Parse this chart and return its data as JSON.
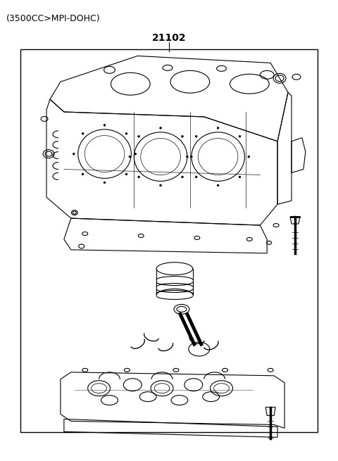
{
  "title_text": "21102",
  "subtitle_text": "(3500CC>MPI-DOHC)",
  "bg_color": "#ffffff",
  "border_color": "#000000",
  "line_color": "#000000",
  "title_fontsize": 10,
  "subtitle_fontsize": 9,
  "figsize": [
    4.8,
    6.55
  ],
  "dpi": 100
}
